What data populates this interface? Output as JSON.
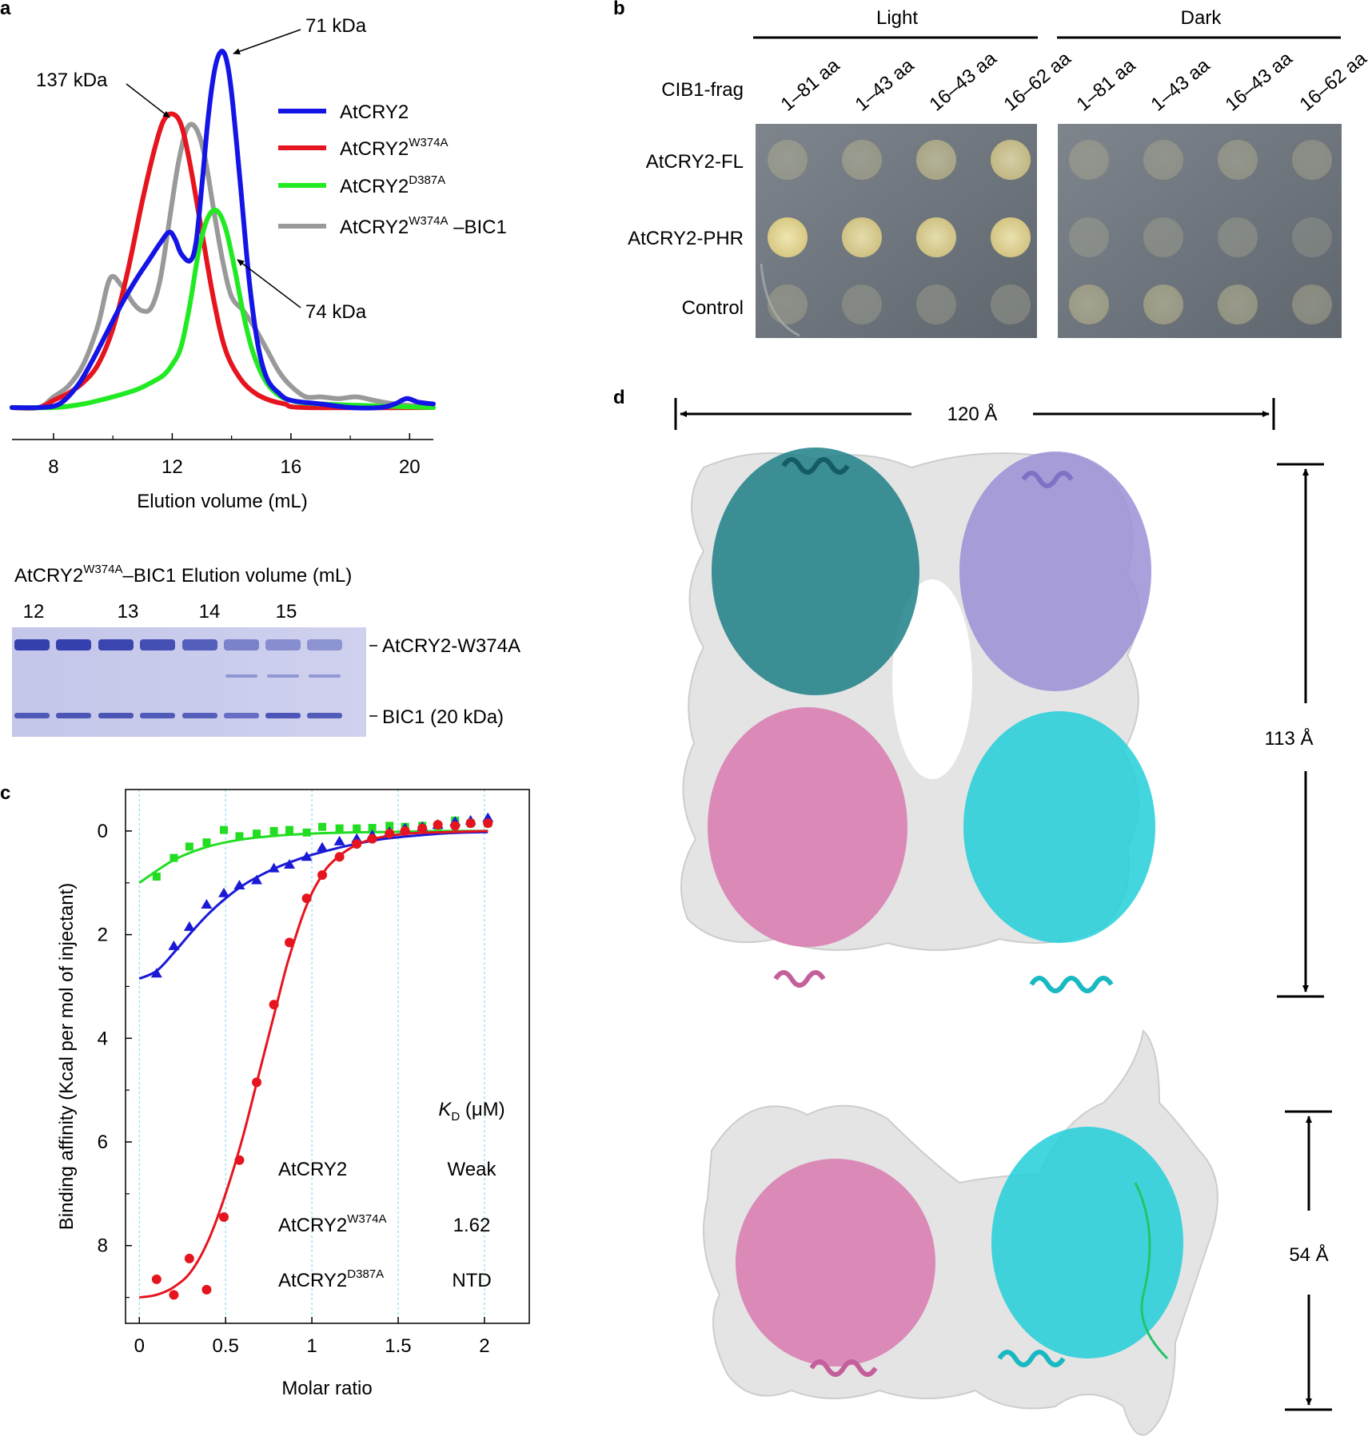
{
  "panels": {
    "a": "a",
    "b": "b",
    "c": "c",
    "d": "d"
  },
  "panel_a": {
    "annotations": {
      "peak_137": "137 kDa",
      "peak_71": "71 kDa",
      "peak_74": "74 kDa"
    },
    "gel": {
      "title_main": "AtCRY2",
      "title_sup": "W374A",
      "title_rest": "–BIC1 Elution volume (mL)",
      "lane_labels": [
        "12",
        "13",
        "14",
        "15"
      ],
      "band_labels": [
        "AtCRY2-W374A",
        "BIC1 (20 kDa)"
      ]
    }
  },
  "panel_b": {
    "groups": [
      "Light",
      "Dark"
    ],
    "row_header": "CIB1-frag",
    "columns": [
      "1–81 aa",
      "1–43 aa",
      "16–43 aa",
      "16–62 aa",
      "1–81 aa",
      "1–43 aa",
      "16–43 aa",
      "16–62 aa"
    ],
    "rows": [
      "AtCRY2-FL",
      "AtCRY2-PHR",
      "Control"
    ],
    "growth": {
      "light": [
        [
          0.15,
          0.2,
          0.45,
          0.75
        ],
        [
          1.0,
          0.9,
          0.9,
          0.95
        ],
        [
          0.1,
          0.05,
          0.05,
          0.05
        ]
      ],
      "dark": [
        [
          0.1,
          0.1,
          0.15,
          0.1
        ],
        [
          0.05,
          0.05,
          0.05,
          0.0
        ],
        [
          0.3,
          0.3,
          0.25,
          0.15
        ]
      ]
    }
  },
  "panel_d": {
    "width_label": "120 Å",
    "height_top_label": "113 Å",
    "height_bottom_label": "54 Å"
  },
  "chart_data": [
    {
      "id": "a",
      "type": "line",
      "title": "",
      "xlabel": "Elution volume (mL)",
      "ylabel": "",
      "xlim": [
        6.6,
        20.8
      ],
      "ylim": [
        0,
        1.05
      ],
      "xticks": [
        8,
        12,
        16,
        20
      ],
      "legend_position": "top-right",
      "series": [
        {
          "name": "AtCRY2",
          "name_main": "AtCRY2",
          "name_sup": "",
          "name_rest": "",
          "color": "#1414e6",
          "x": [
            6.6,
            7.5,
            8.2,
            8.8,
            9.3,
            9.8,
            10.3,
            10.8,
            11.2,
            11.6,
            11.9,
            12.1,
            12.3,
            12.6,
            12.8,
            13.0,
            13.2,
            13.4,
            13.6,
            13.8,
            14.0,
            14.3,
            14.6,
            14.9,
            15.2,
            15.6,
            16.0,
            17.0,
            18.0,
            19.0,
            19.5,
            19.9,
            20.3,
            20.8
          ],
          "y": [
            0.0,
            0.0,
            0.01,
            0.06,
            0.13,
            0.21,
            0.29,
            0.36,
            0.41,
            0.46,
            0.49,
            0.47,
            0.43,
            0.41,
            0.46,
            0.62,
            0.8,
            0.93,
            0.99,
            0.98,
            0.88,
            0.62,
            0.35,
            0.17,
            0.08,
            0.04,
            0.02,
            0.01,
            0.0,
            0.0,
            0.01,
            0.025,
            0.015,
            0.01
          ]
        },
        {
          "name": "AtCRY2 W374A",
          "name_main": "AtCRY2",
          "name_sup": "W374A",
          "name_rest": "",
          "color": "#e6141e",
          "x": [
            6.6,
            7.5,
            8.0,
            8.5,
            9.0,
            9.5,
            10.0,
            10.5,
            11.0,
            11.4,
            11.7,
            12.0,
            12.3,
            12.6,
            13.0,
            13.4,
            13.8,
            14.3,
            14.8,
            15.3,
            15.8,
            16.5,
            20.8
          ],
          "y": [
            0.0,
            0.0,
            0.02,
            0.04,
            0.07,
            0.12,
            0.22,
            0.38,
            0.58,
            0.72,
            0.8,
            0.82,
            0.79,
            0.68,
            0.49,
            0.3,
            0.16,
            0.08,
            0.04,
            0.02,
            0.01,
            0.0,
            0.0
          ]
        },
        {
          "name": "AtCRY2 D387A",
          "name_main": "AtCRY2",
          "name_sup": "D387A",
          "name_rest": "",
          "color": "#22ea22",
          "x": [
            6.6,
            8.0,
            9.0,
            10.0,
            10.8,
            11.3,
            11.7,
            12.0,
            12.3,
            12.6,
            12.9,
            13.2,
            13.5,
            13.8,
            14.1,
            14.4,
            14.7,
            15.1,
            15.5,
            16.0,
            17.0,
            20.8
          ],
          "y": [
            0.0,
            0.0,
            0.01,
            0.03,
            0.05,
            0.07,
            0.09,
            0.12,
            0.17,
            0.29,
            0.44,
            0.53,
            0.55,
            0.5,
            0.39,
            0.26,
            0.16,
            0.08,
            0.04,
            0.02,
            0.01,
            0.0
          ]
        },
        {
          "name": "AtCRY2 W374A –BIC1",
          "name_main": "AtCRY2",
          "name_sup": "W374A",
          "name_rest": " –BIC1",
          "color": "#999999",
          "x": [
            6.6,
            7.5,
            8.0,
            8.5,
            9.0,
            9.5,
            9.9,
            10.3,
            10.7,
            11.0,
            11.3,
            11.6,
            11.9,
            12.2,
            12.5,
            12.8,
            13.1,
            13.4,
            13.7,
            14.0,
            14.4,
            14.8,
            15.2,
            15.6,
            16.0,
            16.5,
            17.0,
            17.6,
            18.2,
            18.8,
            19.5,
            20.8
          ],
          "y": [
            0.0,
            0.0,
            0.03,
            0.06,
            0.12,
            0.23,
            0.36,
            0.34,
            0.29,
            0.27,
            0.28,
            0.36,
            0.52,
            0.68,
            0.78,
            0.78,
            0.7,
            0.55,
            0.41,
            0.31,
            0.27,
            0.22,
            0.16,
            0.1,
            0.06,
            0.03,
            0.03,
            0.025,
            0.03,
            0.02,
            0.01,
            0.0
          ]
        }
      ]
    },
    {
      "id": "c",
      "type": "scatter",
      "title": "",
      "xlabel": "Molar ratio",
      "ylabel": "Binding affinity (Kcal per mol of injectant)",
      "xlim": [
        -0.08,
        2.26
      ],
      "ylim": [
        -0.8,
        9.5
      ],
      "y_inverted": true,
      "xticks": [
        "0",
        "0.5",
        "1",
        "1.5",
        "2"
      ],
      "xtick_values": [
        0,
        0.5,
        1,
        1.5,
        2
      ],
      "yticks": [
        "0",
        "2",
        "4",
        "6",
        "8"
      ],
      "ytick_values": [
        0,
        2,
        4,
        6,
        8
      ],
      "grid": "dashed vertical",
      "table": {
        "header_italic": "K",
        "header_sub": "D",
        "header_rest": " (μM)",
        "rows": [
          {
            "name_main": "AtCRY2",
            "name_sup": "",
            "value": "Weak"
          },
          {
            "name_main": "AtCRY2",
            "name_sup": "W374A",
            "value": "1.62"
          },
          {
            "name_main": "AtCRY2",
            "name_sup": "D387A",
            "value": "NTD"
          }
        ]
      },
      "series": [
        {
          "name": "AtCRY2 D387A",
          "marker": "square",
          "color": "#22dd22",
          "x": [
            0.1,
            0.2,
            0.29,
            0.39,
            0.49,
            0.58,
            0.68,
            0.78,
            0.87,
            0.97,
            1.06,
            1.16,
            1.26,
            1.35,
            1.45,
            1.54,
            1.64,
            1.73,
            1.83,
            1.92,
            2.02
          ],
          "y": [
            0.88,
            0.52,
            0.3,
            0.22,
            -0.02,
            0.1,
            0.05,
            0.0,
            -0.02,
            0.03,
            -0.08,
            -0.05,
            -0.05,
            -0.06,
            -0.1,
            -0.08,
            -0.1,
            -0.1,
            -0.2,
            -0.15,
            -0.15
          ],
          "fit_x": [
            0,
            0.2,
            0.4,
            0.6,
            0.8,
            1.0,
            1.2,
            1.4,
            1.6,
            1.8,
            2.02
          ],
          "fit_y": [
            1.0,
            0.56,
            0.3,
            0.16,
            0.09,
            0.05,
            0.03,
            0.02,
            0.01,
            0.0,
            0.0
          ]
        },
        {
          "name": "AtCRY2",
          "marker": "triangle",
          "color": "#1a1ad6",
          "x": [
            0.1,
            0.2,
            0.29,
            0.39,
            0.49,
            0.58,
            0.68,
            0.78,
            0.87,
            0.97,
            1.06,
            1.16,
            1.26,
            1.35,
            1.45,
            1.54,
            1.64,
            1.73,
            1.83,
            1.92,
            2.02
          ],
          "y": [
            2.75,
            2.22,
            1.85,
            1.42,
            1.2,
            1.05,
            0.95,
            0.72,
            0.65,
            0.5,
            0.32,
            0.2,
            0.15,
            0.08,
            0.02,
            -0.05,
            -0.08,
            -0.12,
            -0.18,
            -0.2,
            -0.25
          ],
          "fit_x": [
            0,
            0.1,
            0.2,
            0.3,
            0.4,
            0.5,
            0.6,
            0.7,
            0.8,
            0.9,
            1.0,
            1.1,
            1.2,
            1.3,
            1.4,
            1.5,
            1.6,
            1.8,
            2.02
          ],
          "fit_y": [
            2.85,
            2.7,
            2.35,
            1.96,
            1.6,
            1.3,
            1.05,
            0.86,
            0.7,
            0.57,
            0.46,
            0.37,
            0.29,
            0.22,
            0.16,
            0.12,
            0.09,
            0.04,
            0.02
          ]
        },
        {
          "name": "AtCRY2 W374A",
          "marker": "circle",
          "color": "#e6141e",
          "x": [
            0.1,
            0.2,
            0.29,
            0.39,
            0.49,
            0.58,
            0.68,
            0.78,
            0.87,
            0.97,
            1.06,
            1.16,
            1.26,
            1.35,
            1.45,
            1.54,
            1.64,
            1.73,
            1.83,
            1.92,
            2.02
          ],
          "y": [
            8.65,
            8.95,
            8.25,
            8.85,
            7.45,
            6.35,
            4.85,
            3.35,
            2.15,
            1.3,
            0.85,
            0.5,
            0.25,
            0.15,
            0.05,
            0.0,
            -0.05,
            -0.12,
            -0.1,
            -0.15,
            -0.15
          ],
          "fit_x": [
            0,
            0.1,
            0.2,
            0.3,
            0.4,
            0.5,
            0.6,
            0.7,
            0.8,
            0.85,
            0.9,
            0.95,
            1.0,
            1.05,
            1.1,
            1.2,
            1.3,
            1.4,
            1.5,
            1.6,
            1.8,
            2.02
          ],
          "fit_y": [
            9.0,
            8.95,
            8.8,
            8.5,
            7.9,
            7.0,
            5.9,
            4.6,
            3.3,
            2.65,
            2.1,
            1.6,
            1.2,
            0.9,
            0.66,
            0.38,
            0.21,
            0.12,
            0.07,
            0.04,
            0.02,
            0.0
          ]
        }
      ]
    }
  ]
}
